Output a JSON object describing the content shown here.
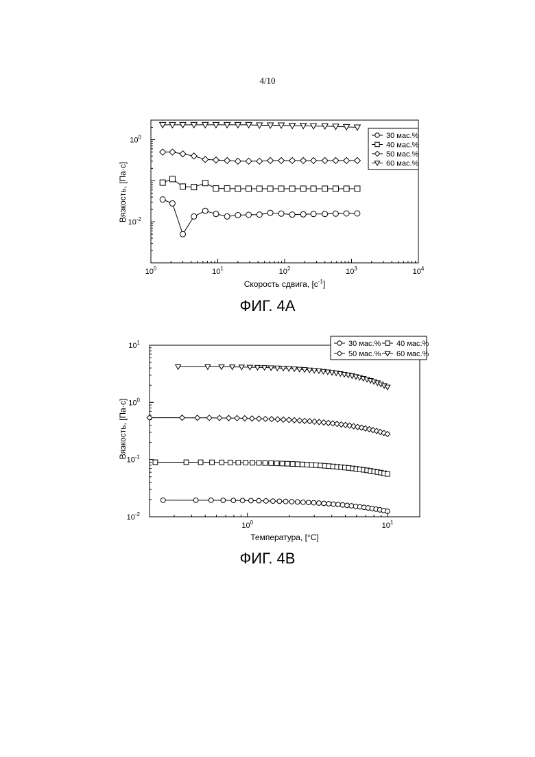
{
  "page_number": "4/10",
  "figures": [
    {
      "caption": "ФИГ. 4А"
    },
    {
      "caption": "ФИГ. 4В"
    }
  ],
  "chart_data": [
    {
      "type": "line",
      "title": "",
      "xlabel": "Скорость сдвига, [с",
      "xlabel_sup": "-1",
      "xlabel_tail": "]",
      "ylabel": "Вязкость, [Па·с]",
      "xscale": "log",
      "yscale": "log",
      "xlim": [
        1,
        10000
      ],
      "ylim": [
        0.001,
        3
      ],
      "xticks": [
        {
          "v": 1,
          "b": "10",
          "e": "0"
        },
        {
          "v": 10,
          "b": "10",
          "e": "1"
        },
        {
          "v": 100,
          "b": "10",
          "e": "2"
        },
        {
          "v": 1000,
          "b": "10",
          "e": "3"
        },
        {
          "v": 10000,
          "b": "10",
          "e": "4"
        }
      ],
      "yticks": [
        {
          "v": 0.01,
          "b": "10",
          "e": "-2"
        },
        {
          "v": 1,
          "b": "10",
          "e": "0"
        }
      ],
      "grid": false,
      "legend_position": "top-right",
      "series": [
        {
          "name": "30 мас.%",
          "marker": "circle",
          "x": [
            1.5,
            2.1,
            3.0,
            4.4,
            6.5,
            9.4,
            13.8,
            20,
            29,
            42,
            61,
            89,
            130,
            190,
            270,
            400,
            580,
            840,
            1220
          ],
          "y": [
            0.035,
            0.028,
            0.005,
            0.0135,
            0.0185,
            0.0155,
            0.0135,
            0.0145,
            0.0148,
            0.015,
            0.0165,
            0.0158,
            0.015,
            0.0152,
            0.0155,
            0.0155,
            0.0158,
            0.016,
            0.016
          ]
        },
        {
          "name": "40 мас.%",
          "marker": "square",
          "x": [
            1.5,
            2.1,
            3.0,
            4.4,
            6.5,
            9.4,
            13.8,
            20,
            29,
            42,
            61,
            89,
            130,
            190,
            270,
            400,
            580,
            840,
            1220
          ],
          "y": [
            0.09,
            0.11,
            0.072,
            0.07,
            0.088,
            0.065,
            0.065,
            0.064,
            0.064,
            0.064,
            0.064,
            0.064,
            0.064,
            0.064,
            0.064,
            0.064,
            0.064,
            0.064,
            0.064
          ]
        },
        {
          "name": "50 мас.%",
          "marker": "diamond",
          "x": [
            1.5,
            2.1,
            3.0,
            4.4,
            6.5,
            9.4,
            13.8,
            20,
            29,
            42,
            61,
            89,
            130,
            190,
            270,
            400,
            580,
            840,
            1220
          ],
          "y": [
            0.5,
            0.5,
            0.45,
            0.4,
            0.33,
            0.32,
            0.31,
            0.3,
            0.3,
            0.3,
            0.31,
            0.31,
            0.31,
            0.31,
            0.31,
            0.31,
            0.31,
            0.31,
            0.31
          ]
        },
        {
          "name": "60 мас.%",
          "marker": "triangle-down",
          "x": [
            1.5,
            2.1,
            3.0,
            4.4,
            6.5,
            9.4,
            13.8,
            20,
            29,
            42,
            61,
            89,
            130,
            190,
            270,
            400,
            580,
            840,
            1220
          ],
          "y": [
            2.3,
            2.3,
            2.3,
            2.3,
            2.3,
            2.3,
            2.3,
            2.3,
            2.3,
            2.25,
            2.25,
            2.25,
            2.2,
            2.2,
            2.15,
            2.15,
            2.1,
            2.05,
            2.0
          ]
        }
      ]
    },
    {
      "type": "line",
      "title": "",
      "xlabel": "Температура, [°C]",
      "ylabel": "Вязкость, [Па·с]",
      "xscale": "log",
      "yscale": "log",
      "xlim": [
        0.2,
        17
      ],
      "ylim": [
        0.01,
        10
      ],
      "xticks": [
        {
          "v": 1,
          "b": "10",
          "e": "0"
        },
        {
          "v": 10,
          "b": "10",
          "e": "1"
        }
      ],
      "yticks": [
        {
          "v": 0.01,
          "b": "10",
          "e": "-2"
        },
        {
          "v": 0.1,
          "b": "10",
          "e": "-1"
        },
        {
          "v": 1,
          "b": "10",
          "e": "0"
        },
        {
          "v": 10,
          "b": "10",
          "e": "1"
        }
      ],
      "grid": false,
      "legend_position": "top-right",
      "series": [
        {
          "name": "30 мас.%",
          "marker": "circle",
          "x_start": 0.25,
          "x_end": 10,
          "count": 34,
          "y_start": 0.0195,
          "y_end": 0.0125
        },
        {
          "name": "40 мас.%",
          "marker": "square",
          "x_start": 0.22,
          "x_end": 10,
          "count": 40,
          "y_start": 0.09,
          "y_end": 0.056
        },
        {
          "name": "50 мас.%",
          "marker": "diamond",
          "x_start": 0.2,
          "x_end": 10,
          "count": 38,
          "y_start": 0.54,
          "y_end": 0.28
        },
        {
          "name": "60 мас.%",
          "marker": "triangle-down",
          "x_start": 0.32,
          "x_end": 10,
          "count": 36,
          "y_start": 4.2,
          "y_end": 1.85
        }
      ]
    }
  ]
}
